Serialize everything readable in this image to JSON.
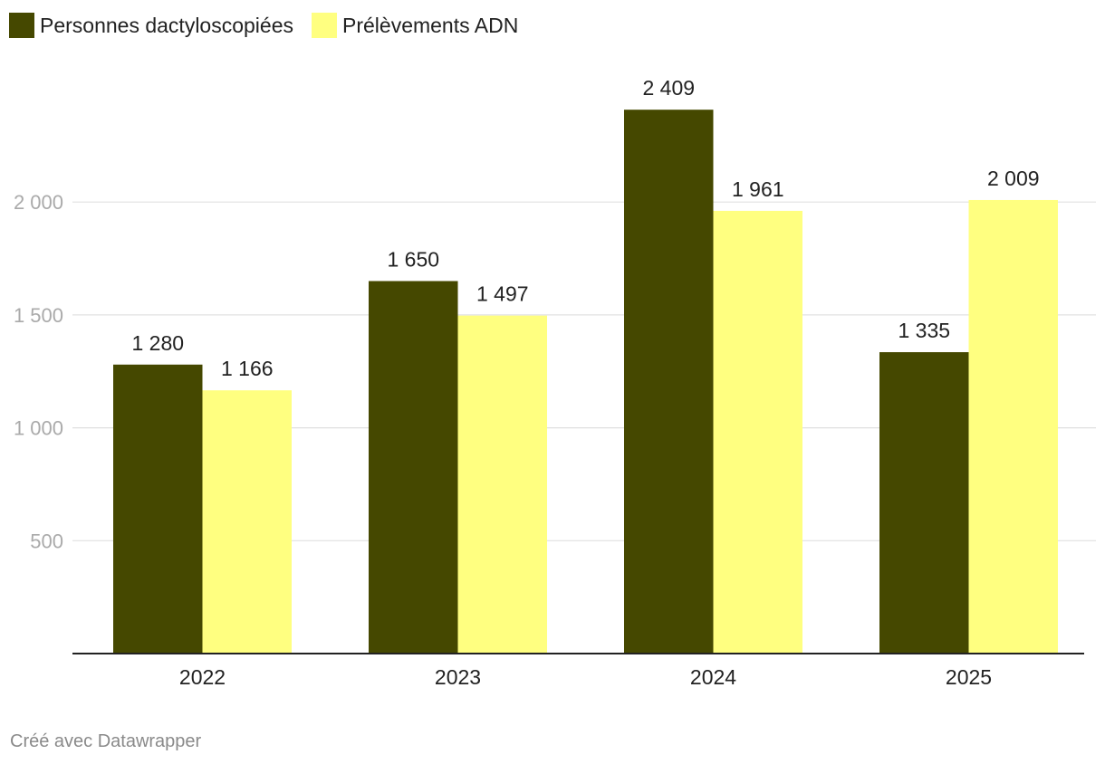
{
  "chart_data": {
    "type": "bar",
    "categories": [
      "2022",
      "2023",
      "2024",
      "2025"
    ],
    "series": [
      {
        "name": "Personnes dactyloscopiées",
        "color": "#454800",
        "values": [
          1280,
          1650,
          2409,
          1335
        ],
        "value_labels": [
          "1 280",
          "1 650",
          "2 409",
          "1 335"
        ]
      },
      {
        "name": "Prélèvements ADN",
        "color": "#ffff80",
        "values": [
          1166,
          1497,
          1961,
          2009
        ],
        "value_labels": [
          "1 166",
          "1 497",
          "1 961",
          "2 009"
        ]
      }
    ],
    "yticks": [
      500,
      1000,
      1500,
      2000
    ],
    "ytick_labels": [
      "500",
      "1 000",
      "1 500",
      "2 000"
    ],
    "ylim": [
      0,
      2500
    ],
    "grid": true,
    "legend_position": "top-left"
  },
  "footer": {
    "credit": "Créé avec Datawrapper"
  }
}
